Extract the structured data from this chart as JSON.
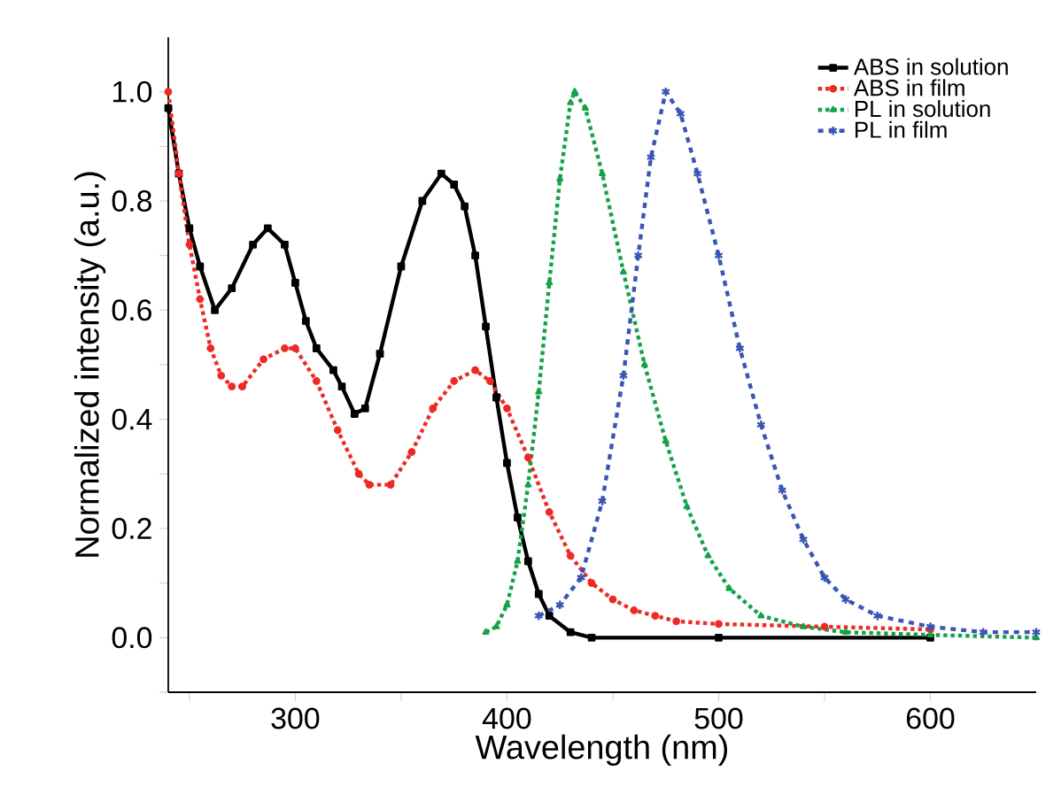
{
  "chart_data": {
    "type": "line",
    "xlabel": "Wavelength (nm)",
    "ylabel": "Normalized intensity (a.u.)",
    "xlim": [
      240,
      650
    ],
    "ylim": [
      -0.1,
      1.1
    ],
    "xticks": [
      {
        "value": 250,
        "label": null
      },
      300,
      {
        "value": 350,
        "label": null
      },
      400,
      {
        "value": 450,
        "label": null
      },
      500,
      {
        "value": 550,
        "label": null
      },
      600
    ],
    "yticks": [
      {
        "value": -0.1,
        "label": null
      },
      {
        "value": 0,
        "label": "0.0"
      },
      {
        "value": 0.1,
        "label": null
      },
      0.2,
      {
        "value": 0.3,
        "label": null
      },
      0.4,
      {
        "value": 0.5,
        "label": null
      },
      0.6,
      {
        "value": 0.7,
        "label": null
      },
      0.8,
      {
        "value": 0.9,
        "label": null
      },
      {
        "value": 1,
        "label": "1.0"
      }
    ],
    "legend": "top right",
    "grid": false,
    "series": [
      {
        "name": "ABS in solution",
        "color": "#000000",
        "marker": "square",
        "line_style": "solid",
        "x": [
          240,
          245,
          250,
          255,
          262,
          270,
          280,
          287,
          295,
          300,
          305,
          310,
          318,
          322,
          328,
          333,
          340,
          350,
          360,
          369,
          375,
          380,
          385,
          390,
          395,
          400,
          405,
          410,
          415,
          420,
          430,
          440,
          500,
          600
        ],
        "values": [
          0.97,
          0.85,
          0.75,
          0.68,
          0.6,
          0.64,
          0.72,
          0.75,
          0.72,
          0.65,
          0.58,
          0.53,
          0.49,
          0.46,
          0.41,
          0.42,
          0.52,
          0.68,
          0.8,
          0.85,
          0.83,
          0.79,
          0.7,
          0.57,
          0.44,
          0.32,
          0.22,
          0.14,
          0.08,
          0.04,
          0.01,
          0.0,
          0.0,
          0.0
        ]
      },
      {
        "name": "ABS in film",
        "color": "#ee2a24",
        "marker": "circle",
        "line_style": "dotted",
        "x": [
          240,
          245,
          250,
          255,
          260,
          265,
          270,
          275,
          285,
          295,
          300,
          310,
          320,
          330,
          335,
          345,
          355,
          365,
          375,
          385,
          392,
          400,
          410,
          420,
          430,
          440,
          450,
          460,
          470,
          480,
          500,
          550,
          600
        ],
        "values": [
          1.0,
          0.85,
          0.72,
          0.62,
          0.53,
          0.48,
          0.46,
          0.46,
          0.51,
          0.53,
          0.53,
          0.47,
          0.38,
          0.3,
          0.28,
          0.28,
          0.34,
          0.42,
          0.47,
          0.49,
          0.47,
          0.42,
          0.33,
          0.23,
          0.15,
          0.1,
          0.07,
          0.05,
          0.04,
          0.03,
          0.025,
          0.02,
          0.015
        ]
      },
      {
        "name": "PL in solution",
        "color": "#13a24a",
        "marker": "triangle",
        "line_style": "dotted",
        "x": [
          390,
          395,
          400,
          405,
          410,
          415,
          420,
          425,
          430,
          432,
          437,
          445,
          455,
          465,
          475,
          485,
          495,
          505,
          520,
          540,
          560,
          600,
          650
        ],
        "values": [
          0.01,
          0.02,
          0.06,
          0.14,
          0.28,
          0.45,
          0.65,
          0.84,
          0.98,
          1.0,
          0.97,
          0.85,
          0.67,
          0.5,
          0.36,
          0.24,
          0.15,
          0.09,
          0.04,
          0.02,
          0.01,
          0.005,
          0.0
        ]
      },
      {
        "name": "PL in film",
        "color": "#3a55b4",
        "marker": "cross",
        "line_style": "dashed",
        "x": [
          415,
          425,
          435,
          445,
          455,
          462,
          468,
          475,
          482,
          490,
          500,
          510,
          520,
          530,
          540,
          550,
          560,
          575,
          600,
          625,
          650
        ],
        "values": [
          0.04,
          0.06,
          0.11,
          0.25,
          0.48,
          0.7,
          0.88,
          1.0,
          0.96,
          0.85,
          0.7,
          0.53,
          0.39,
          0.27,
          0.18,
          0.11,
          0.07,
          0.04,
          0.02,
          0.01,
          0.01
        ]
      }
    ]
  }
}
